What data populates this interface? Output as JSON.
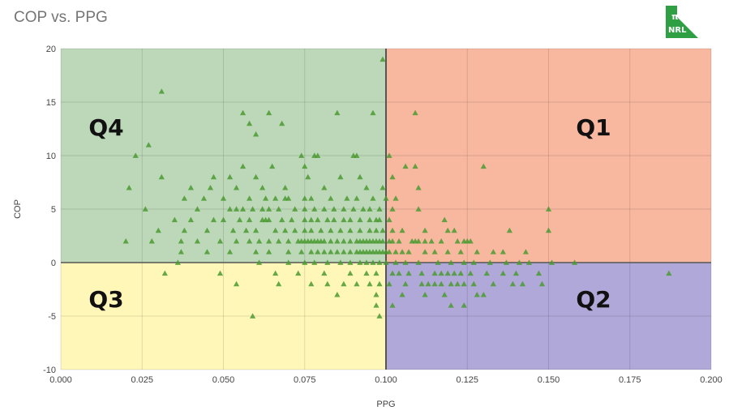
{
  "title": "COP vs. PPG",
  "logo": {
    "icon": "nrl-pi-logo-icon",
    "line1": "π",
    "line2": "NRL",
    "color": "#2ea043"
  },
  "quadrant_labels": {
    "q1": "Q1",
    "q2": "Q2",
    "q3": "Q3",
    "q4": "Q4"
  },
  "quadrant_colors": {
    "q1": "#f8b8a0",
    "q2": "#b0a8d8",
    "q3": "#fff7b8",
    "q4": "#bcd8b8"
  },
  "marker_color": "#4a9a30",
  "chart_data": {
    "type": "scatter",
    "title": "COP vs. PPG",
    "xlabel": "PPG",
    "ylabel": "COP",
    "xlim": [
      0,
      0.2
    ],
    "ylim": [
      -10,
      20
    ],
    "xticks": [
      "0.000",
      "0.025",
      "0.050",
      "0.075",
      "0.100",
      "0.125",
      "0.150",
      "0.175",
      "0.200"
    ],
    "yticks": [
      "-10",
      "-5",
      "0",
      "5",
      "10",
      "15",
      "20"
    ],
    "grid": true,
    "quadrant_split": {
      "x": 0.1,
      "y": 0
    },
    "points": [
      [
        0.099,
        19
      ],
      [
        0.031,
        16
      ],
      [
        0.056,
        14
      ],
      [
        0.064,
        14
      ],
      [
        0.085,
        14
      ],
      [
        0.096,
        14
      ],
      [
        0.109,
        14
      ],
      [
        0.058,
        13
      ],
      [
        0.068,
        13
      ],
      [
        0.06,
        12
      ],
      [
        0.027,
        11
      ],
      [
        0.023,
        10
      ],
      [
        0.074,
        10
      ],
      [
        0.078,
        10
      ],
      [
        0.079,
        10
      ],
      [
        0.09,
        10
      ],
      [
        0.091,
        10
      ],
      [
        0.101,
        10
      ],
      [
        0.056,
        9
      ],
      [
        0.065,
        9
      ],
      [
        0.075,
        9
      ],
      [
        0.106,
        9
      ],
      [
        0.109,
        9
      ],
      [
        0.13,
        9
      ],
      [
        0.031,
        8
      ],
      [
        0.047,
        8
      ],
      [
        0.052,
        8
      ],
      [
        0.06,
        8
      ],
      [
        0.076,
        8
      ],
      [
        0.086,
        8
      ],
      [
        0.092,
        8
      ],
      [
        0.102,
        8
      ],
      [
        0.021,
        7
      ],
      [
        0.04,
        7
      ],
      [
        0.046,
        7
      ],
      [
        0.054,
        7
      ],
      [
        0.062,
        7
      ],
      [
        0.069,
        7
      ],
      [
        0.081,
        7
      ],
      [
        0.094,
        7
      ],
      [
        0.099,
        7
      ],
      [
        0.11,
        7
      ],
      [
        0.038,
        6
      ],
      [
        0.044,
        6
      ],
      [
        0.05,
        6
      ],
      [
        0.058,
        6
      ],
      [
        0.063,
        6
      ],
      [
        0.066,
        6
      ],
      [
        0.069,
        6
      ],
      [
        0.07,
        6
      ],
      [
        0.075,
        6
      ],
      [
        0.077,
        6
      ],
      [
        0.083,
        6
      ],
      [
        0.088,
        6
      ],
      [
        0.091,
        6
      ],
      [
        0.096,
        6
      ],
      [
        0.1,
        6
      ],
      [
        0.103,
        6
      ],
      [
        0.026,
        5
      ],
      [
        0.042,
        5
      ],
      [
        0.052,
        5
      ],
      [
        0.054,
        5
      ],
      [
        0.056,
        5
      ],
      [
        0.059,
        5
      ],
      [
        0.062,
        5
      ],
      [
        0.064,
        5
      ],
      [
        0.067,
        5
      ],
      [
        0.072,
        5
      ],
      [
        0.075,
        5
      ],
      [
        0.078,
        5
      ],
      [
        0.081,
        5
      ],
      [
        0.084,
        5
      ],
      [
        0.087,
        5
      ],
      [
        0.09,
        5
      ],
      [
        0.093,
        5
      ],
      [
        0.095,
        5
      ],
      [
        0.098,
        5
      ],
      [
        0.102,
        5
      ],
      [
        0.11,
        5
      ],
      [
        0.15,
        5
      ],
      [
        0.035,
        4
      ],
      [
        0.04,
        4
      ],
      [
        0.047,
        4
      ],
      [
        0.05,
        4
      ],
      [
        0.055,
        4
      ],
      [
        0.058,
        4
      ],
      [
        0.062,
        4
      ],
      [
        0.063,
        4
      ],
      [
        0.064,
        4
      ],
      [
        0.068,
        4
      ],
      [
        0.071,
        4
      ],
      [
        0.075,
        4
      ],
      [
        0.077,
        4
      ],
      [
        0.079,
        4
      ],
      [
        0.082,
        4
      ],
      [
        0.084,
        4
      ],
      [
        0.087,
        4
      ],
      [
        0.089,
        4
      ],
      [
        0.092,
        4
      ],
      [
        0.095,
        4
      ],
      [
        0.097,
        4
      ],
      [
        0.098,
        4
      ],
      [
        0.101,
        4
      ],
      [
        0.118,
        4
      ],
      [
        0.03,
        3
      ],
      [
        0.038,
        3
      ],
      [
        0.045,
        3
      ],
      [
        0.053,
        3
      ],
      [
        0.057,
        3
      ],
      [
        0.06,
        3
      ],
      [
        0.066,
        3
      ],
      [
        0.069,
        3
      ],
      [
        0.072,
        3
      ],
      [
        0.075,
        3
      ],
      [
        0.077,
        3
      ],
      [
        0.08,
        3
      ],
      [
        0.083,
        3
      ],
      [
        0.086,
        3
      ],
      [
        0.089,
        3
      ],
      [
        0.092,
        3
      ],
      [
        0.095,
        3
      ],
      [
        0.097,
        3
      ],
      [
        0.099,
        3
      ],
      [
        0.102,
        3
      ],
      [
        0.105,
        3
      ],
      [
        0.112,
        3
      ],
      [
        0.119,
        3
      ],
      [
        0.121,
        3
      ],
      [
        0.138,
        3
      ],
      [
        0.15,
        3
      ],
      [
        0.02,
        2
      ],
      [
        0.028,
        2
      ],
      [
        0.037,
        2
      ],
      [
        0.042,
        2
      ],
      [
        0.049,
        2
      ],
      [
        0.054,
        2
      ],
      [
        0.058,
        2
      ],
      [
        0.061,
        2
      ],
      [
        0.064,
        2
      ],
      [
        0.067,
        2
      ],
      [
        0.07,
        2
      ],
      [
        0.073,
        2
      ],
      [
        0.074,
        2
      ],
      [
        0.075,
        2
      ],
      [
        0.076,
        2
      ],
      [
        0.077,
        2
      ],
      [
        0.078,
        2
      ],
      [
        0.079,
        2
      ],
      [
        0.08,
        2
      ],
      [
        0.081,
        2
      ],
      [
        0.083,
        2
      ],
      [
        0.085,
        2
      ],
      [
        0.087,
        2
      ],
      [
        0.089,
        2
      ],
      [
        0.091,
        2
      ],
      [
        0.092,
        2
      ],
      [
        0.093,
        2
      ],
      [
        0.094,
        2
      ],
      [
        0.095,
        2
      ],
      [
        0.096,
        2
      ],
      [
        0.097,
        2
      ],
      [
        0.098,
        2
      ],
      [
        0.099,
        2
      ],
      [
        0.101,
        2
      ],
      [
        0.102,
        2
      ],
      [
        0.104,
        2
      ],
      [
        0.108,
        2
      ],
      [
        0.109,
        2
      ],
      [
        0.11,
        2
      ],
      [
        0.112,
        2
      ],
      [
        0.114,
        2
      ],
      [
        0.117,
        2
      ],
      [
        0.122,
        2
      ],
      [
        0.124,
        2
      ],
      [
        0.125,
        2
      ],
      [
        0.126,
        2
      ],
      [
        0.037,
        1
      ],
      [
        0.045,
        1
      ],
      [
        0.052,
        1
      ],
      [
        0.06,
        1
      ],
      [
        0.064,
        1
      ],
      [
        0.07,
        1
      ],
      [
        0.074,
        1
      ],
      [
        0.077,
        1
      ],
      [
        0.079,
        1
      ],
      [
        0.081,
        1
      ],
      [
        0.083,
        1
      ],
      [
        0.085,
        1
      ],
      [
        0.087,
        1
      ],
      [
        0.089,
        1
      ],
      [
        0.091,
        1
      ],
      [
        0.092,
        1
      ],
      [
        0.093,
        1
      ],
      [
        0.094,
        1
      ],
      [
        0.095,
        1
      ],
      [
        0.096,
        1
      ],
      [
        0.097,
        1
      ],
      [
        0.098,
        1
      ],
      [
        0.099,
        1
      ],
      [
        0.1,
        1
      ],
      [
        0.101,
        1
      ],
      [
        0.103,
        1
      ],
      [
        0.105,
        1
      ],
      [
        0.107,
        1
      ],
      [
        0.112,
        1
      ],
      [
        0.115,
        1
      ],
      [
        0.119,
        1
      ],
      [
        0.123,
        1
      ],
      [
        0.128,
        1
      ],
      [
        0.133,
        1
      ],
      [
        0.136,
        1
      ],
      [
        0.143,
        1
      ],
      [
        0.036,
        0
      ],
      [
        0.061,
        0
      ],
      [
        0.07,
        0
      ],
      [
        0.075,
        0
      ],
      [
        0.078,
        0
      ],
      [
        0.082,
        0
      ],
      [
        0.086,
        0
      ],
      [
        0.089,
        0
      ],
      [
        0.092,
        0
      ],
      [
        0.094,
        0
      ],
      [
        0.096,
        0
      ],
      [
        0.098,
        0
      ],
      [
        0.1,
        0
      ],
      [
        0.103,
        0
      ],
      [
        0.106,
        0
      ],
      [
        0.11,
        0
      ],
      [
        0.116,
        0
      ],
      [
        0.12,
        0
      ],
      [
        0.124,
        0
      ],
      [
        0.127,
        0
      ],
      [
        0.132,
        0
      ],
      [
        0.137,
        0
      ],
      [
        0.141,
        0
      ],
      [
        0.144,
        0
      ],
      [
        0.151,
        0
      ],
      [
        0.158,
        0
      ],
      [
        0.032,
        -1
      ],
      [
        0.049,
        -1
      ],
      [
        0.066,
        -1
      ],
      [
        0.073,
        -1
      ],
      [
        0.081,
        -1
      ],
      [
        0.089,
        -1
      ],
      [
        0.094,
        -1
      ],
      [
        0.097,
        -1
      ],
      [
        0.102,
        -1
      ],
      [
        0.104,
        -1
      ],
      [
        0.107,
        -1
      ],
      [
        0.111,
        -1
      ],
      [
        0.115,
        -1
      ],
      [
        0.117,
        -1
      ],
      [
        0.119,
        -1
      ],
      [
        0.121,
        -1
      ],
      [
        0.123,
        -1
      ],
      [
        0.126,
        -1
      ],
      [
        0.131,
        -1
      ],
      [
        0.136,
        -1
      ],
      [
        0.14,
        -1
      ],
      [
        0.147,
        -1
      ],
      [
        0.187,
        -1
      ],
      [
        0.054,
        -2
      ],
      [
        0.067,
        -2
      ],
      [
        0.077,
        -2
      ],
      [
        0.082,
        -2
      ],
      [
        0.087,
        -2
      ],
      [
        0.091,
        -2
      ],
      [
        0.095,
        -2
      ],
      [
        0.098,
        -2
      ],
      [
        0.101,
        -2
      ],
      [
        0.106,
        -2
      ],
      [
        0.111,
        -2
      ],
      [
        0.113,
        -2
      ],
      [
        0.115,
        -2
      ],
      [
        0.117,
        -2
      ],
      [
        0.12,
        -2
      ],
      [
        0.122,
        -2
      ],
      [
        0.124,
        -2
      ],
      [
        0.127,
        -2
      ],
      [
        0.133,
        -2
      ],
      [
        0.139,
        -2
      ],
      [
        0.142,
        -2
      ],
      [
        0.148,
        -2
      ],
      [
        0.085,
        -3
      ],
      [
        0.097,
        -3
      ],
      [
        0.105,
        -3
      ],
      [
        0.112,
        -3
      ],
      [
        0.118,
        -3
      ],
      [
        0.128,
        -3
      ],
      [
        0.13,
        -3
      ],
      [
        0.097,
        -4
      ],
      [
        0.102,
        -4
      ],
      [
        0.12,
        -4
      ],
      [
        0.124,
        -4
      ],
      [
        0.059,
        -5
      ],
      [
        0.098,
        -5
      ]
    ]
  }
}
